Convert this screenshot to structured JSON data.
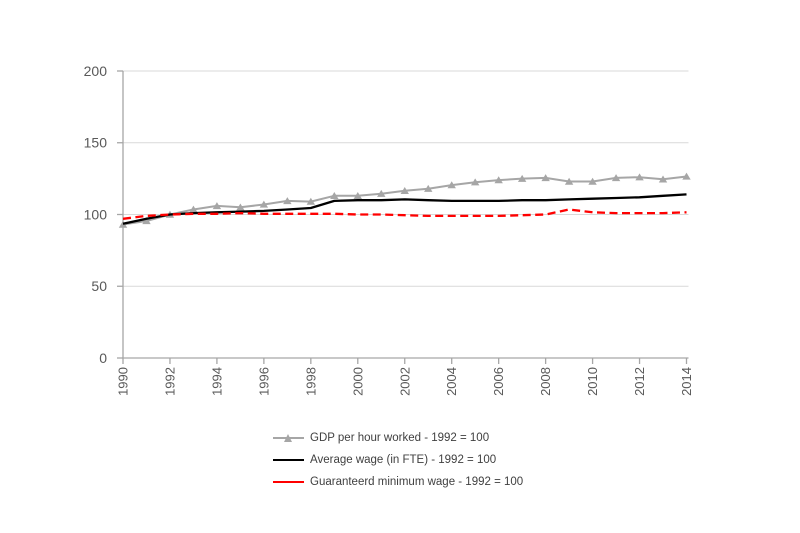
{
  "colors": {
    "background": "#ffffff",
    "gridline": "#d9d9d9",
    "axis_line": "#a6a6a6",
    "tick_label": "#595959",
    "legend_text": "#404040",
    "series_gdp": "#a6a6a6",
    "series_avg_wage": "#000000",
    "series_min_wage": "#ff0000"
  },
  "chart_data": {
    "type": "line",
    "title": "",
    "xlabel": "",
    "ylabel": "",
    "grid": true,
    "legend_position": "bottom",
    "ylim": [
      0,
      200
    ],
    "y_ticks": [
      0,
      50,
      100,
      150,
      200
    ],
    "y_tick_labels": [
      "0",
      "50",
      "100",
      "150",
      "200"
    ],
    "x": [
      1990,
      1991,
      1992,
      1993,
      1994,
      1995,
      1996,
      1997,
      1998,
      1999,
      2000,
      2001,
      2002,
      2003,
      2004,
      2005,
      2006,
      2007,
      2008,
      2009,
      2010,
      2011,
      2012,
      2013,
      2014
    ],
    "x_tick_labels": [
      "1990",
      "1992",
      "1994",
      "1996",
      "1998",
      "2000",
      "2002",
      "2004",
      "2006",
      "2008",
      "2010",
      "2012",
      "2014"
    ],
    "x_tick_values": [
      1990,
      1992,
      1994,
      1996,
      1998,
      2000,
      2002,
      2004,
      2006,
      2008,
      2010,
      2012,
      2014
    ],
    "series": [
      {
        "name": "GDP per hour worked - 1992 = 100",
        "color": "#a6a6a6",
        "marker": "triangle",
        "dash": "solid",
        "line_width": 2,
        "values": [
          93,
          95.5,
          100,
          103.5,
          106,
          105,
          107,
          109.5,
          109,
          113,
          113,
          114.5,
          116.5,
          118,
          120.5,
          122.5,
          124,
          125,
          125.5,
          123,
          123,
          125.5,
          126,
          124.5,
          126.5
        ]
      },
      {
        "name": "Average wage (in FTE) - 1992 = 100",
        "color": "#000000",
        "marker": "none",
        "dash": "solid",
        "line_width": 2.3,
        "values": [
          93.5,
          97,
          100,
          101,
          101.5,
          102,
          102.5,
          103.5,
          104.5,
          109.5,
          110,
          110,
          110.5,
          110,
          109.5,
          109.5,
          109.5,
          110,
          110,
          110.5,
          111,
          111.5,
          112,
          113,
          114
        ]
      },
      {
        "name": "Guaranteerd minimum wage - 1992 = 100",
        "color": "#ff0000",
        "marker": "none",
        "dash": "dashed",
        "line_width": 2.3,
        "values": [
          97,
          99,
          100,
          100.5,
          100.5,
          101,
          100.5,
          100.5,
          100.5,
          100.5,
          100,
          100,
          99.5,
          99,
          99,
          99,
          99,
          99.5,
          100,
          103.5,
          101.5,
          101,
          101,
          101,
          101.5
        ]
      }
    ]
  }
}
